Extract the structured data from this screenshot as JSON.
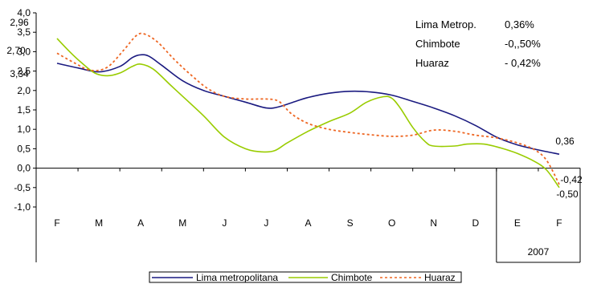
{
  "chart_data": {
    "type": "line",
    "ylim": [
      -1.0,
      4.0
    ],
    "y_ticks": [
      "4,0",
      "3,5",
      "3,0",
      "2,5",
      "2,0",
      "1,5",
      "1,0",
      "0,5",
      "0,0",
      "-0,5",
      "-1,0"
    ],
    "categories": [
      "F",
      "M",
      "A",
      "M",
      "J",
      "J",
      "A",
      "S",
      "O",
      "N",
      "D",
      "E",
      "F"
    ],
    "year_label": "2007",
    "legend": "bottom",
    "series": [
      {
        "name": "Lima metropolitana",
        "color": "#1a1a80",
        "dash": "solid",
        "points": [
          [
            0,
            2.7
          ],
          [
            0.5,
            2.58
          ],
          [
            1,
            2.48
          ],
          [
            1.5,
            2.62
          ],
          [
            1.8,
            2.85
          ],
          [
            2,
            2.92
          ],
          [
            2.2,
            2.88
          ],
          [
            2.5,
            2.65
          ],
          [
            3,
            2.25
          ],
          [
            3.5,
            2.0
          ],
          [
            4,
            1.85
          ],
          [
            4.5,
            1.7
          ],
          [
            5,
            1.55
          ],
          [
            5.3,
            1.58
          ],
          [
            5.7,
            1.72
          ],
          [
            6,
            1.82
          ],
          [
            6.5,
            1.93
          ],
          [
            7,
            1.98
          ],
          [
            7.5,
            1.96
          ],
          [
            8,
            1.88
          ],
          [
            8.5,
            1.72
          ],
          [
            9,
            1.55
          ],
          [
            9.5,
            1.35
          ],
          [
            10,
            1.1
          ],
          [
            10.5,
            0.8
          ],
          [
            11,
            0.6
          ],
          [
            11.5,
            0.47
          ],
          [
            12,
            0.36
          ]
        ]
      },
      {
        "name": "Chimbote",
        "color": "#99cc00",
        "dash": "solid",
        "points": [
          [
            0,
            3.34
          ],
          [
            0.3,
            3.0
          ],
          [
            0.6,
            2.7
          ],
          [
            0.9,
            2.45
          ],
          [
            1.2,
            2.38
          ],
          [
            1.5,
            2.45
          ],
          [
            1.8,
            2.62
          ],
          [
            2,
            2.68
          ],
          [
            2.3,
            2.55
          ],
          [
            2.7,
            2.15
          ],
          [
            3,
            1.85
          ],
          [
            3.5,
            1.35
          ],
          [
            4,
            0.8
          ],
          [
            4.5,
            0.5
          ],
          [
            4.9,
            0.42
          ],
          [
            5.2,
            0.45
          ],
          [
            5.5,
            0.65
          ],
          [
            6,
            0.95
          ],
          [
            6.5,
            1.2
          ],
          [
            7,
            1.42
          ],
          [
            7.4,
            1.7
          ],
          [
            7.8,
            1.84
          ],
          [
            8,
            1.8
          ],
          [
            8.2,
            1.55
          ],
          [
            8.5,
            1.05
          ],
          [
            8.8,
            0.68
          ],
          [
            9,
            0.57
          ],
          [
            9.5,
            0.57
          ],
          [
            9.8,
            0.62
          ],
          [
            10.2,
            0.62
          ],
          [
            10.6,
            0.52
          ],
          [
            11,
            0.38
          ],
          [
            11.4,
            0.18
          ],
          [
            11.7,
            -0.05
          ],
          [
            12,
            -0.5
          ]
        ]
      },
      {
        "name": "Huaraz",
        "color": "#ee6622",
        "dash": "dotted",
        "points": [
          [
            0,
            2.96
          ],
          [
            0.4,
            2.72
          ],
          [
            0.8,
            2.52
          ],
          [
            1.2,
            2.6
          ],
          [
            1.6,
            3.05
          ],
          [
            1.9,
            3.42
          ],
          [
            2.1,
            3.45
          ],
          [
            2.4,
            3.25
          ],
          [
            2.8,
            2.8
          ],
          [
            3.2,
            2.4
          ],
          [
            3.6,
            2.05
          ],
          [
            4,
            1.85
          ],
          [
            4.5,
            1.78
          ],
          [
            5,
            1.78
          ],
          [
            5.3,
            1.72
          ],
          [
            5.6,
            1.4
          ],
          [
            6,
            1.15
          ],
          [
            6.5,
            1.0
          ],
          [
            7,
            0.92
          ],
          [
            7.5,
            0.86
          ],
          [
            8,
            0.82
          ],
          [
            8.5,
            0.85
          ],
          [
            9,
            0.98
          ],
          [
            9.5,
            0.95
          ],
          [
            10,
            0.85
          ],
          [
            10.5,
            0.78
          ],
          [
            11,
            0.65
          ],
          [
            11.4,
            0.48
          ],
          [
            11.7,
            0.2
          ],
          [
            12,
            -0.42
          ]
        ]
      }
    ],
    "data_labels": [
      {
        "text": "2,96",
        "series": "Huaraz",
        "x": 0,
        "y": 2.96
      },
      {
        "text": "2,70",
        "series": "Lima metropolitana",
        "x": 0,
        "y": 2.7
      },
      {
        "text": "3,34",
        "series": "Chimbote",
        "x": 0,
        "y": 3.34
      },
      {
        "text": "0,36",
        "series": "Lima metropolitana",
        "x": 12,
        "y": 0.36
      },
      {
        "text": "-0,42",
        "series": "Huaraz",
        "x": 12,
        "y": -0.42
      },
      {
        "text": "-0,50",
        "series": "Chimbote",
        "x": 12,
        "y": -0.5
      }
    ],
    "annotations": [
      {
        "name": "Lima Metrop.",
        "value": "0,36%"
      },
      {
        "name": "Chimbote",
        "value": "-0,,50%"
      },
      {
        "name": "Huaraz",
        "value": "- 0,42%"
      }
    ]
  }
}
